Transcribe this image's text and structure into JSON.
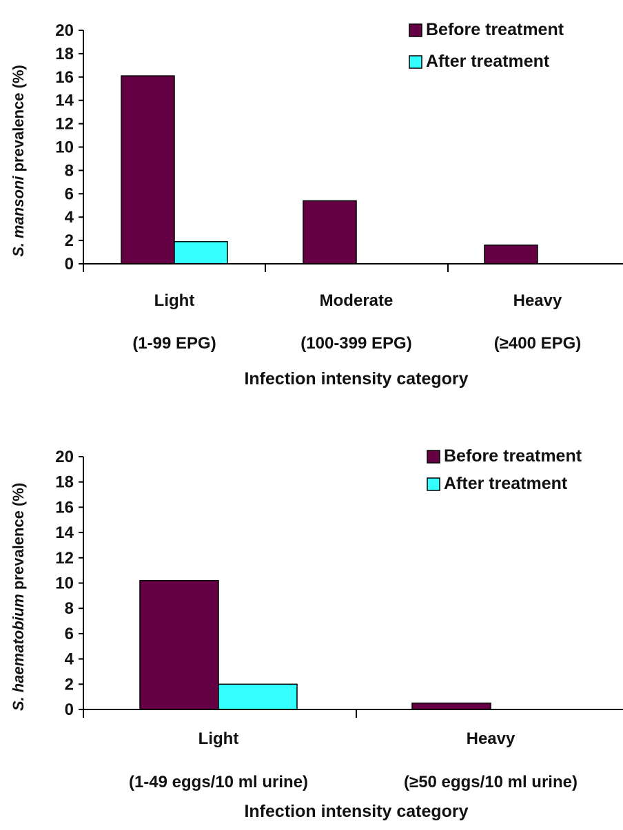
{
  "colors": {
    "before": "#660044",
    "after": "#33ffff",
    "axis": "#000000"
  },
  "chart_data": [
    {
      "type": "bar",
      "categories": [
        "Light",
        "Moderate",
        "Heavy"
      ],
      "category_sublabels": [
        "(1-99 EPG)",
        "(100-399 EPG)",
        "(≥400 EPG)"
      ],
      "series": [
        {
          "name": "Before treatment",
          "values": [
            16.1,
            5.4,
            1.6
          ]
        },
        {
          "name": "After treatment",
          "values": [
            1.9,
            0,
            0
          ]
        }
      ],
      "xlabel": "Infection intensity category",
      "ylabel_italic": "S. mansoni",
      "ylabel_rest": " prevalence (%)",
      "ylim": [
        0,
        20
      ],
      "yticks": [
        0,
        2,
        4,
        6,
        8,
        10,
        12,
        14,
        16,
        18,
        20
      ],
      "legend": "top-right",
      "grid": false
    },
    {
      "type": "bar",
      "categories": [
        "Light",
        "Heavy"
      ],
      "category_sublabels": [
        "(1-49 eggs/10 ml urine)",
        "(≥50 eggs/10 ml urine)"
      ],
      "series": [
        {
          "name": "Before treatment",
          "values": [
            10.2,
            0.5
          ]
        },
        {
          "name": "After treatment",
          "values": [
            2.0,
            0
          ]
        }
      ],
      "xlabel": "Infection intensity category",
      "ylabel_italic": "S. haematobium",
      "ylabel_rest": " prevalence (%)",
      "ylim": [
        0,
        20
      ],
      "yticks": [
        0,
        2,
        4,
        6,
        8,
        10,
        12,
        14,
        16,
        18,
        20
      ],
      "legend": "top-right",
      "grid": false
    }
  ]
}
